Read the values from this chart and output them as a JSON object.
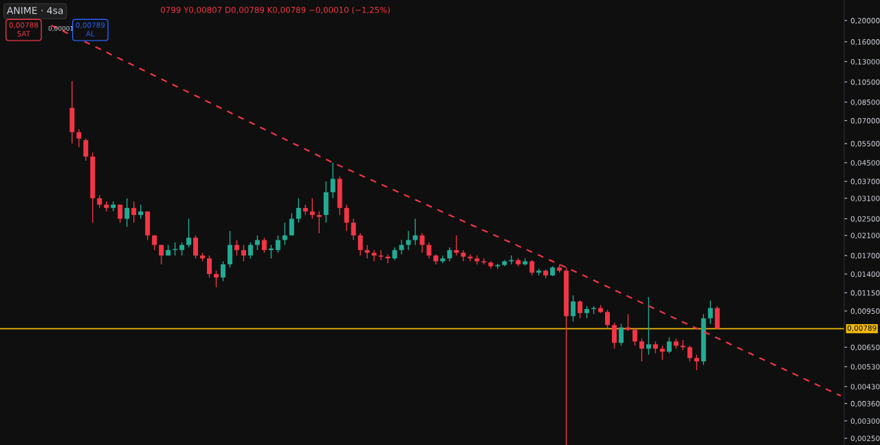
{
  "chart_data": {
    "type": "candlestick",
    "title": "ANIME · 4sa",
    "annotations": [
      "0799 Y0,00807 D0,00789 K0,00789 −0,00010 (−1,25%)",
      "0,00788",
      "SAT",
      "0,00001",
      "0,00789",
      "AL"
    ],
    "categories": [
      null,
      null,
      null,
      null,
      null,
      null,
      null,
      null,
      null,
      null,
      null,
      null,
      null,
      null,
      null,
      null,
      null,
      null,
      null,
      null,
      null,
      null,
      null,
      null,
      null,
      null,
      null,
      null,
      null,
      null,
      null,
      null,
      null,
      null,
      null,
      null,
      null,
      null,
      null,
      null,
      null,
      null,
      null,
      null,
      null,
      null,
      null,
      null,
      null,
      null,
      null,
      null,
      null,
      null,
      null,
      null,
      null,
      null,
      null,
      null,
      null,
      null,
      null,
      null,
      null,
      null,
      null,
      null,
      null,
      null,
      null,
      null,
      null,
      null,
      null,
      null,
      null,
      null,
      null,
      null,
      null,
      null,
      null,
      null,
      null,
      null,
      null,
      null,
      null,
      null,
      null,
      null,
      null,
      null,
      null,
      null,
      null,
      null,
      null,
      null,
      null,
      null,
      null,
      null,
      null,
      null,
      null,
      null,
      null,
      null,
      null,
      null,
      null,
      null,
      null,
      null,
      null,
      null,
      null,
      null,
      null,
      null,
      null
    ],
    "ohlc": [
      null,
      null,
      null,
      null,
      null,
      null,
      null,
      null,
      null,
      null,
      [
        0.08,
        0.106,
        0.055,
        0.062
      ],
      [
        0.062,
        0.064,
        0.053,
        0.058
      ],
      [
        0.057,
        0.058,
        0.046,
        0.048
      ],
      [
        0.048,
        0.05,
        0.024,
        0.031
      ],
      [
        0.031,
        0.032,
        0.028,
        0.029
      ],
      [
        0.029,
        0.03,
        0.027,
        0.028
      ],
      [
        0.028,
        0.03,
        0.027,
        0.029
      ],
      [
        0.029,
        0.029,
        0.024,
        0.025
      ],
      [
        0.025,
        0.031,
        0.023,
        0.028
      ],
      [
        0.028,
        0.03,
        0.024,
        0.026
      ],
      [
        0.026,
        0.029,
        0.025,
        0.027
      ],
      [
        0.027,
        0.027,
        0.02,
        0.021
      ],
      [
        0.021,
        0.021,
        0.018,
        0.019
      ],
      [
        0.019,
        0.019,
        0.0155,
        0.017
      ],
      [
        0.017,
        0.019,
        0.017,
        0.018
      ],
      [
        0.018,
        0.0195,
        0.017,
        0.0182
      ],
      [
        0.018,
        0.0195,
        0.017,
        0.019
      ],
      [
        0.019,
        0.025,
        0.0185,
        0.0205
      ],
      [
        0.0205,
        0.021,
        0.0165,
        0.017
      ],
      [
        0.017,
        0.0175,
        0.016,
        0.0165
      ],
      [
        0.0165,
        0.017,
        0.0135,
        0.014
      ],
      [
        0.014,
        0.0145,
        0.0122,
        0.0135
      ],
      [
        0.0135,
        0.016,
        0.013,
        0.0155
      ],
      [
        0.0155,
        0.022,
        0.015,
        0.019
      ],
      [
        0.019,
        0.02,
        0.017,
        0.018
      ],
      [
        0.018,
        0.019,
        0.016,
        0.017
      ],
      [
        0.017,
        0.0195,
        0.0165,
        0.019
      ],
      [
        0.019,
        0.021,
        0.018,
        0.02
      ],
      [
        0.02,
        0.0205,
        0.0175,
        0.018
      ],
      [
        0.018,
        0.019,
        0.0165,
        0.0183
      ],
      [
        0.018,
        0.021,
        0.0175,
        0.02
      ],
      [
        0.02,
        0.024,
        0.019,
        0.021
      ],
      [
        0.021,
        0.0265,
        0.021,
        0.025
      ],
      [
        0.025,
        0.031,
        0.024,
        0.028
      ],
      [
        0.028,
        0.029,
        0.026,
        0.027
      ],
      [
        0.027,
        0.031,
        0.025,
        0.026
      ],
      [
        0.026,
        0.027,
        0.0215,
        0.0255
      ],
      [
        0.026,
        0.037,
        0.024,
        0.033
      ],
      [
        0.033,
        0.045,
        0.031,
        0.038
      ],
      [
        0.038,
        0.039,
        0.026,
        0.028
      ],
      [
        0.028,
        0.029,
        0.022,
        0.024
      ],
      [
        0.024,
        0.025,
        0.02,
        0.021
      ],
      [
        0.021,
        0.0215,
        0.017,
        0.018
      ],
      [
        0.018,
        0.019,
        0.0165,
        0.0175
      ],
      [
        0.0175,
        0.018,
        0.016,
        0.017
      ],
      [
        0.017,
        0.018,
        0.0162,
        0.0168
      ],
      [
        0.0168,
        0.0172,
        0.0157,
        0.0165
      ],
      [
        0.0165,
        0.0185,
        0.0162,
        0.018
      ],
      [
        0.018,
        0.02,
        0.0172,
        0.019
      ],
      [
        0.019,
        0.022,
        0.018,
        0.02
      ],
      [
        0.02,
        0.025,
        0.019,
        0.021
      ],
      [
        0.021,
        0.0215,
        0.0175,
        0.019
      ],
      [
        0.019,
        0.0195,
        0.0165,
        0.017
      ],
      [
        0.017,
        0.0172,
        0.0155,
        0.016
      ],
      [
        0.016,
        0.017,
        0.0157,
        0.0165
      ],
      [
        0.0165,
        0.0185,
        0.016,
        0.018
      ],
      [
        0.018,
        0.021,
        0.017,
        0.0175
      ],
      [
        0.0175,
        0.018,
        0.016,
        0.0168
      ],
      [
        0.0168,
        0.0172,
        0.016,
        0.0165
      ],
      [
        0.0165,
        0.017,
        0.0155,
        0.016
      ],
      [
        0.016,
        0.0165,
        0.0155,
        0.0158
      ],
      [
        0.0158,
        0.016,
        0.0148,
        0.0152
      ],
      [
        0.0152,
        0.0156,
        0.0148,
        0.0154
      ],
      [
        0.0154,
        0.0162,
        0.0152,
        0.016
      ],
      [
        0.016,
        0.017,
        0.0155,
        0.0162
      ],
      [
        0.0162,
        0.0165,
        0.0152,
        0.0155
      ],
      [
        0.0155,
        0.0165,
        0.0153,
        0.016
      ],
      [
        0.016,
        0.0162,
        0.0138,
        0.0142
      ],
      [
        0.0142,
        0.0148,
        0.0138,
        0.0145
      ],
      [
        0.0145,
        0.0147,
        0.0134,
        0.0138
      ],
      [
        0.0138,
        0.0152,
        0.0137,
        0.015
      ],
      [
        0.015,
        0.0155,
        0.0142,
        0.0145
      ],
      [
        0.0145,
        0.015,
        0.00233,
        0.009
      ],
      [
        0.009,
        0.0112,
        0.0085,
        0.0105
      ],
      [
        0.0105,
        0.0106,
        0.0088,
        0.0093
      ],
      [
        0.0093,
        0.01,
        0.0088,
        0.0097
      ],
      [
        0.0097,
        0.01,
        0.0092,
        0.0098
      ],
      [
        0.0098,
        0.0101,
        0.0093,
        0.0094
      ],
      [
        0.0094,
        0.0096,
        0.0079,
        0.0082
      ],
      [
        0.0082,
        0.0084,
        0.0064,
        0.0068
      ],
      [
        0.0068,
        0.0083,
        0.0066,
        0.008
      ],
      [
        0.008,
        0.0092,
        0.0077,
        0.0078
      ],
      [
        0.0078,
        0.0079,
        0.0066,
        0.0069
      ],
      [
        0.0069,
        0.0071,
        0.0056,
        0.0064
      ],
      [
        0.0064,
        0.011,
        0.006,
        0.0067
      ],
      [
        0.0067,
        0.0069,
        0.0061,
        0.0064
      ],
      [
        0.0064,
        0.0066,
        0.0057,
        0.0062
      ],
      [
        0.0062,
        0.0072,
        0.0061,
        0.0069
      ],
      [
        0.0069,
        0.0071,
        0.0064,
        0.0066
      ],
      [
        0.0066,
        0.007,
        0.0063,
        0.0065
      ],
      [
        0.0065,
        0.0066,
        0.0056,
        0.0058
      ],
      [
        0.0058,
        0.006,
        0.0051,
        0.0056
      ],
      [
        0.0056,
        0.0092,
        0.0054,
        0.0088
      ],
      [
        0.0088,
        0.0106,
        0.0083,
        0.0098
      ],
      [
        0.0098,
        0.01,
        0.00789,
        0.00789
      ],
      null,
      null,
      null,
      null,
      null,
      null,
      null,
      null,
      null,
      null,
      null,
      null,
      null,
      null,
      null,
      null,
      null,
      null
    ],
    "colors": [
      null,
      null,
      null,
      null,
      null,
      null,
      null,
      null,
      null,
      null,
      "#f23645",
      "#f23645",
      "#f23645",
      "#f23645",
      "#f23645",
      "#f23645",
      "#22ab94",
      "#f23645",
      "#22ab94",
      "#f23645",
      "#22ab94",
      "#f23645",
      "#f23645",
      "#f23645",
      "#22ab94",
      "#22ab94",
      "#22ab94",
      "#22ab94",
      "#f23645",
      "#f23645",
      "#f23645",
      "#f23645",
      "#22ab94",
      "#22ab94",
      "#f23645",
      "#f23645",
      "#22ab94",
      "#22ab94",
      "#f23645",
      "#22ab94",
      "#22ab94",
      "#22ab94",
      "#22ab94",
      "#22ab94",
      "#f23645",
      "#f23645",
      "#f23645",
      "#22ab94",
      "#22ab94",
      "#f23645",
      "#f23645",
      "#f23645",
      "#f23645",
      "#f23645",
      "#f23645",
      "#f23645",
      "#f23645",
      "#22ab94",
      "#22ab94",
      "#22ab94",
      "#22ab94",
      "#f23645",
      "#f23645",
      "#f23645",
      "#22ab94",
      "#22ab94",
      "#f23645",
      "#f23645",
      "#f23645",
      "#f23645",
      "#f23645",
      "#f23645",
      "#22ab94",
      "#22ab94",
      "#22ab94",
      "#f23645",
      "#22ab94",
      "#f23645",
      "#22ab94",
      "#f23645",
      "#22ab94",
      "#f23645",
      "#f23645",
      "#22ab94",
      "#f23645",
      "#22ab94",
      "#22ab94",
      "#f23645",
      "#f23645",
      "#f23645",
      "#22ab94",
      "#f23645",
      "#f23645",
      "#f23645",
      "#22ab94",
      "#f23645",
      "#f23645",
      "#22ab94",
      "#f23645",
      "#f23645",
      "#f23645",
      "#f23645",
      "#22ab94",
      "#22ab94",
      "#f23645",
      null,
      null,
      null,
      null,
      null,
      null,
      null,
      null,
      null,
      null,
      null,
      null,
      null,
      null,
      null,
      null,
      null,
      null
    ],
    "series": [
      {
        "type": "line",
        "color": "#f23645",
        "line_style": "dashed",
        "values": [
          null,
          null,
          null,
          null,
          null,
          null,
          null,
          0.19,
          null,
          null,
          null,
          null,
          null,
          null,
          null,
          null,
          null,
          null,
          null,
          null,
          null,
          null,
          null,
          null,
          null,
          null,
          null,
          null,
          null,
          null,
          null,
          null,
          null,
          null,
          null,
          null,
          null,
          null,
          null,
          null,
          null,
          null,
          null,
          null,
          null,
          null,
          null,
          null,
          0.045,
          null,
          null,
          null,
          null,
          null,
          null,
          null,
          null,
          null,
          null,
          null,
          null,
          null,
          null,
          null,
          null,
          null,
          null,
          null,
          null,
          null,
          null,
          null,
          null,
          null,
          null,
          null,
          null,
          null,
          null,
          null,
          null,
          null,
          0.015,
          null,
          null,
          null,
          null,
          null,
          null,
          null,
          null,
          null,
          null,
          null,
          null,
          null,
          null,
          null,
          null,
          null,
          null,
          null,
          null,
          null,
          null,
          null,
          null,
          null,
          null,
          null,
          null,
          null,
          null,
          null,
          null,
          null,
          null,
          null,
          null,
          null,
          null,
          null,
          0.0039
        ]
      }
    ],
    "log": true,
    "ylim": [
      0.00233,
      0.248
    ],
    "yticks": [
      {
        "value": 0.2,
        "label": "0,20000"
      },
      {
        "value": 0.16,
        "label": "0,16000"
      },
      {
        "value": 0.13,
        "label": "0,13000"
      },
      {
        "value": 0.105,
        "label": "0,10500"
      },
      {
        "value": 0.085,
        "label": "0,08500"
      },
      {
        "value": 0.07,
        "label": "0,07000"
      },
      {
        "value": 0.055,
        "label": "0,05500"
      },
      {
        "value": 0.045,
        "label": "0,04500"
      },
      {
        "value": 0.037,
        "label": "0,03700"
      },
      {
        "value": 0.031,
        "label": "0,03100"
      },
      {
        "value": 0.025,
        "label": "0,02500"
      },
      {
        "value": 0.021,
        "label": "0,02100"
      },
      {
        "value": 0.017,
        "label": "0,01700"
      },
      {
        "value": 0.014,
        "label": "0,01400"
      },
      {
        "value": 0.0115,
        "label": "0,01150"
      },
      {
        "value": 0.0095,
        "label": "0,00950"
      },
      {
        "value": 0.0065,
        "label": "0,00650"
      },
      {
        "value": 0.0053,
        "label": "0,00530"
      },
      {
        "value": 0.0043,
        "label": "0,00430"
      },
      {
        "value": 0.0036,
        "label": "0,00360"
      },
      {
        "value": 0.003,
        "label": "0,00300"
      },
      {
        "value": 0.0025,
        "label": "0,00250"
      }
    ],
    "tick_labels": "y",
    "ref_lines": [
      {
        "axis": "y",
        "value": 0.00789,
        "label": "0,00789",
        "color": "#f0b90b",
        "line_style": "solid"
      }
    ]
  }
}
